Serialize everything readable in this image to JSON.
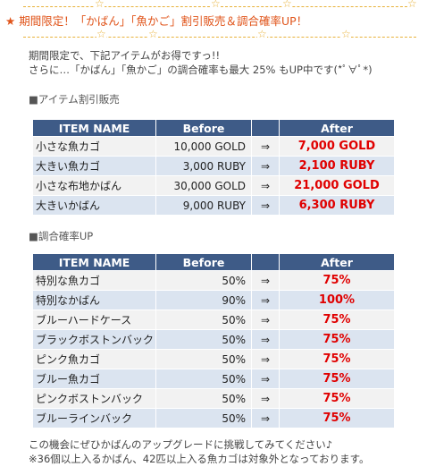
{
  "headline": {
    "star": "★",
    "text": "期間限定！「かばん」「魚かご」割引販売＆調合確率UP！"
  },
  "intro": {
    "line1": "期間限定で、下記アイテムがお得ですっ!!",
    "line2": "さらに…「かばん」「魚かご」の調合確率も最大 25% もUP中です(*ﾟ∀ﾟ*)"
  },
  "sale_section": {
    "label": "■アイテム割引販売",
    "headers": {
      "name": "ITEM NAME",
      "before": "Before",
      "after": "After"
    },
    "rows": [
      {
        "name": "小さな魚カゴ",
        "before": "10,000 GOLD",
        "arrow": "⇒",
        "after": "7,000 GOLD"
      },
      {
        "name": "大きい魚カゴ",
        "before": "3,000 RUBY",
        "arrow": "⇒",
        "after": "2,100 RUBY"
      },
      {
        "name": "小さな布地かばん",
        "before": "30,000 GOLD",
        "arrow": "⇒",
        "after": "21,000 GOLD"
      },
      {
        "name": "大きいかばん",
        "before": "9,000 RUBY",
        "arrow": "⇒",
        "after": "6,300 RUBY"
      }
    ]
  },
  "rate_section": {
    "label": "■調合確率UP",
    "headers": {
      "name": "ITEM NAME",
      "before": "Before",
      "after": "After"
    },
    "rows": [
      {
        "name": "特別な魚カゴ",
        "before": "50%",
        "arrow": "⇒",
        "after": "75%"
      },
      {
        "name": "特別なかばん",
        "before": "90%",
        "arrow": "⇒",
        "after": "100%"
      },
      {
        "name": "ブルーハードケース",
        "before": "50%",
        "arrow": "⇒",
        "after": "75%"
      },
      {
        "name": "ブラックボストンバック",
        "before": "50%",
        "arrow": "⇒",
        "after": "75%"
      },
      {
        "name": "ピンク魚カゴ",
        "before": "50%",
        "arrow": "⇒",
        "after": "75%"
      },
      {
        "name": "ブルー魚カゴ",
        "before": "50%",
        "arrow": "⇒",
        "after": "75%"
      },
      {
        "name": "ピンクボストンバック",
        "before": "50%",
        "arrow": "⇒",
        "after": "75%"
      },
      {
        "name": "ブルーラインバック",
        "before": "50%",
        "arrow": "⇒",
        "after": "75%"
      }
    ]
  },
  "footer": {
    "line1": "この機会にぜひかばんのアップグレードに挑戦してみてください♪",
    "line2": "※36個以上入るかばん、42匹以上入る魚カゴは対象外となっております。"
  },
  "colors": {
    "header_bg": "#3e5b87",
    "after_text": "#e00000",
    "headline": "#e0541a",
    "star_rule": "#e8b23a"
  }
}
